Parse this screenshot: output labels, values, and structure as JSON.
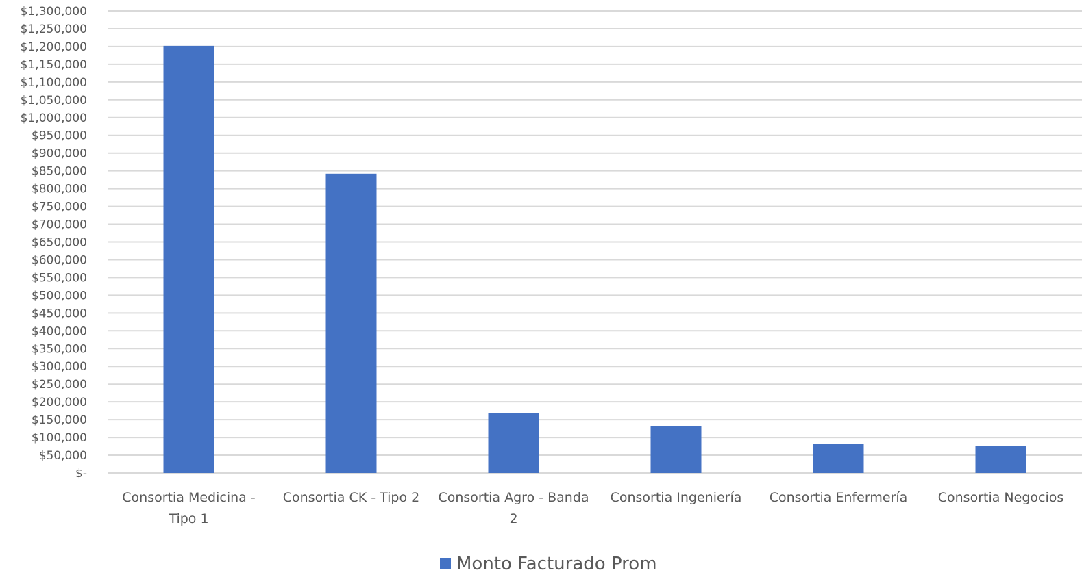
{
  "chart_data": {
    "type": "bar",
    "title": "",
    "xlabel": "",
    "ylabel": "",
    "ylim": [
      0,
      1300000
    ],
    "ytick_step": 50000,
    "grid": true,
    "legend_position": "bottom",
    "bar_color": "#4472C4",
    "grid_color": "#D9D9D9",
    "categories": [
      [
        "Consortia Medicina -",
        "Tipo 1"
      ],
      [
        "Consortia CK - Tipo 2"
      ],
      [
        "Consortia Agro - Banda",
        "2"
      ],
      [
        "Consortia Ingeniería"
      ],
      [
        "Consortia Enfermería"
      ],
      [
        "Consortia Negocios"
      ]
    ],
    "series": [
      {
        "name": "Monto Facturado Prom",
        "values": [
          1202000,
          842000,
          168000,
          131000,
          81000,
          77000
        ]
      }
    ]
  }
}
